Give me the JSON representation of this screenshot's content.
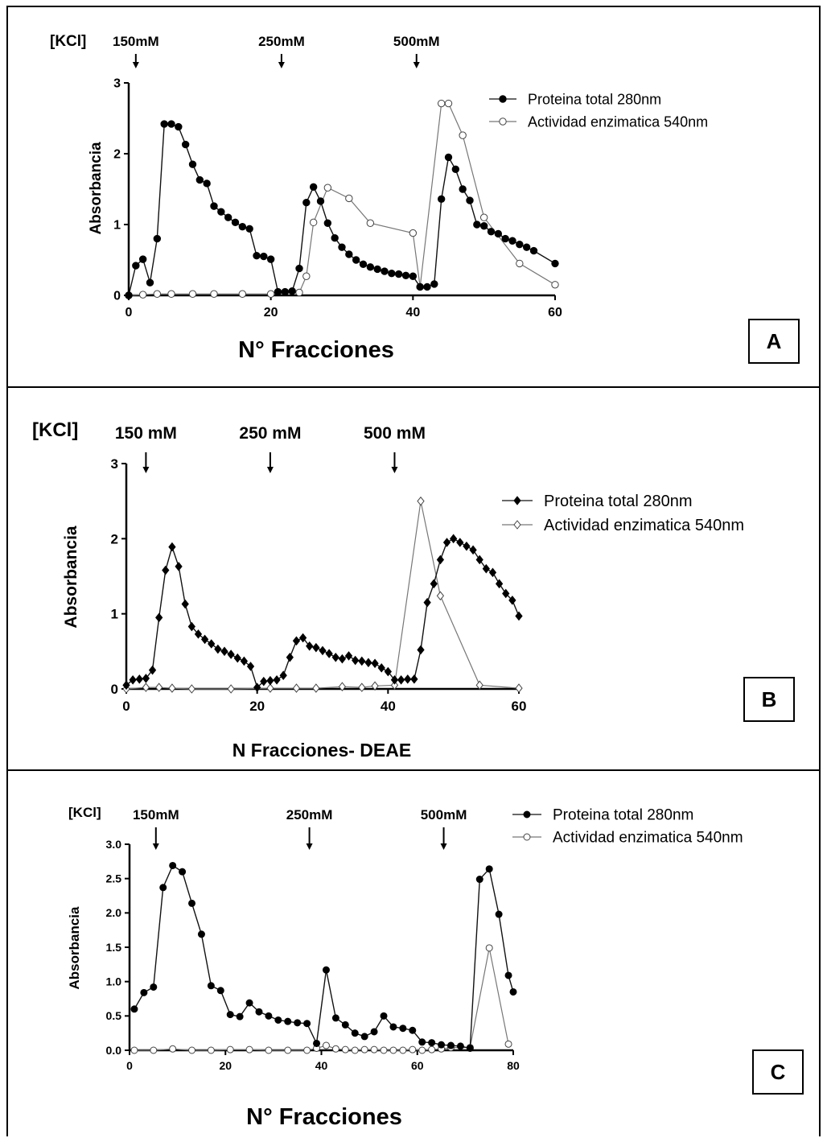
{
  "chart_data": [
    {
      "panel": "A",
      "type": "line",
      "xlabel": "N° Fracciones",
      "ylabel": "Absorbancia",
      "xlim": [
        0,
        60
      ],
      "ylim": [
        0,
        3
      ],
      "xticks": [
        "0",
        "20",
        "40",
        "60"
      ],
      "yticks": [
        "0",
        "1",
        "2",
        "3"
      ],
      "salt_label": "[KCl]",
      "arrows": [
        {
          "label": "150mM",
          "x": 1
        },
        {
          "label": "250mM",
          "x": 21.5
        },
        {
          "label": "500mM",
          "x": 40.5
        }
      ],
      "series": [
        {
          "name": "Proteina total 280nm",
          "marker": "filled",
          "points": [
            [
              0,
              0
            ],
            [
              1,
              0.42
            ],
            [
              2,
              0.51
            ],
            [
              3,
              0.18
            ],
            [
              4,
              0.8
            ],
            [
              5,
              2.42
            ],
            [
              6,
              2.42
            ],
            [
              7,
              2.38
            ],
            [
              8,
              2.13
            ],
            [
              9,
              1.85
            ],
            [
              10,
              1.63
            ],
            [
              11,
              1.58
            ],
            [
              12,
              1.26
            ],
            [
              13,
              1.18
            ],
            [
              14,
              1.1
            ],
            [
              15,
              1.03
            ],
            [
              16,
              0.97
            ],
            [
              17,
              0.94
            ],
            [
              18,
              0.56
            ],
            [
              19,
              0.55
            ],
            [
              20,
              0.51
            ],
            [
              21,
              0.05
            ],
            [
              22,
              0.05
            ],
            [
              23,
              0.06
            ],
            [
              24,
              0.38
            ],
            [
              25,
              1.31
            ],
            [
              26,
              1.53
            ],
            [
              27,
              1.33
            ],
            [
              28,
              1.02
            ],
            [
              29,
              0.81
            ],
            [
              30,
              0.68
            ],
            [
              31,
              0.58
            ],
            [
              32,
              0.5
            ],
            [
              33,
              0.44
            ],
            [
              34,
              0.4
            ],
            [
              35,
              0.37
            ],
            [
              36,
              0.34
            ],
            [
              37,
              0.31
            ],
            [
              38,
              0.3
            ],
            [
              39,
              0.28
            ],
            [
              40,
              0.27
            ],
            [
              41,
              0.12
            ],
            [
              42,
              0.12
            ],
            [
              43,
              0.16
            ],
            [
              44,
              1.36
            ],
            [
              45,
              1.95
            ],
            [
              46,
              1.78
            ],
            [
              47,
              1.5
            ],
            [
              48,
              1.34
            ],
            [
              49,
              1.0
            ],
            [
              50,
              0.98
            ],
            [
              51,
              0.9
            ],
            [
              52,
              0.87
            ],
            [
              53,
              0.8
            ],
            [
              54,
              0.77
            ],
            [
              55,
              0.72
            ],
            [
              56,
              0.68
            ],
            [
              57,
              0.63
            ],
            [
              60,
              0.45
            ]
          ]
        },
        {
          "name": "Actividad enzimatica 540nm",
          "marker": "open",
          "points": [
            [
              0,
              0
            ],
            [
              2,
              0.01
            ],
            [
              4,
              0.02
            ],
            [
              6,
              0.02
            ],
            [
              9,
              0.02
            ],
            [
              12,
              0.02
            ],
            [
              16,
              0.02
            ],
            [
              20,
              0.02
            ],
            [
              24,
              0.04
            ],
            [
              25,
              0.27
            ],
            [
              26,
              1.03
            ],
            [
              28,
              1.52
            ],
            [
              31,
              1.37
            ],
            [
              34,
              1.02
            ],
            [
              40,
              0.88
            ],
            [
              41,
              0.12
            ],
            [
              44,
              2.71
            ],
            [
              45,
              2.71
            ],
            [
              47,
              2.26
            ],
            [
              50,
              1.1
            ],
            [
              55,
              0.45
            ],
            [
              60,
              0.15
            ]
          ]
        }
      ],
      "legend_position": "top-right"
    },
    {
      "panel": "B",
      "type": "line",
      "xlabel": "N Fracciones- DEAE",
      "ylabel": "Absorbancia",
      "xlim": [
        0,
        60
      ],
      "ylim": [
        0,
        3
      ],
      "xticks": [
        "0",
        "20",
        "40",
        "60"
      ],
      "yticks": [
        "0",
        "1",
        "2",
        "3"
      ],
      "salt_label": "[KCl]",
      "arrows": [
        {
          "label": "150 mM",
          "x": 3
        },
        {
          "label": "250 mM",
          "x": 22
        },
        {
          "label": "500 mM",
          "x": 41
        }
      ],
      "series": [
        {
          "name": "Proteina total 280nm",
          "marker": "filled-diamond",
          "points": [
            [
              0,
              0.05
            ],
            [
              1,
              0.12
            ],
            [
              2,
              0.13
            ],
            [
              3,
              0.14
            ],
            [
              4,
              0.25
            ],
            [
              5,
              0.95
            ],
            [
              6,
              1.58
            ],
            [
              7,
              1.89
            ],
            [
              8,
              1.63
            ],
            [
              9,
              1.13
            ],
            [
              10,
              0.83
            ],
            [
              11,
              0.73
            ],
            [
              12,
              0.66
            ],
            [
              13,
              0.6
            ],
            [
              14,
              0.53
            ],
            [
              15,
              0.5
            ],
            [
              16,
              0.46
            ],
            [
              17,
              0.41
            ],
            [
              18,
              0.37
            ],
            [
              19,
              0.3
            ],
            [
              20,
              0.02
            ],
            [
              21,
              0.1
            ],
            [
              22,
              0.11
            ],
            [
              23,
              0.12
            ],
            [
              24,
              0.18
            ],
            [
              25,
              0.42
            ],
            [
              26,
              0.64
            ],
            [
              27,
              0.68
            ],
            [
              28,
              0.57
            ],
            [
              29,
              0.55
            ],
            [
              30,
              0.51
            ],
            [
              31,
              0.47
            ],
            [
              32,
              0.42
            ],
            [
              33,
              0.4
            ],
            [
              34,
              0.44
            ],
            [
              35,
              0.38
            ],
            [
              36,
              0.37
            ],
            [
              37,
              0.35
            ],
            [
              38,
              0.34
            ],
            [
              39,
              0.28
            ],
            [
              40,
              0.23
            ],
            [
              41,
              0.12
            ],
            [
              42,
              0.12
            ],
            [
              43,
              0.13
            ],
            [
              44,
              0.13
            ],
            [
              45,
              0.52
            ],
            [
              46,
              1.15
            ],
            [
              47,
              1.4
            ],
            [
              48,
              1.72
            ],
            [
              49,
              1.95
            ],
            [
              50,
              2.0
            ],
            [
              51,
              1.95
            ],
            [
              52,
              1.9
            ],
            [
              53,
              1.85
            ],
            [
              54,
              1.72
            ],
            [
              55,
              1.6
            ],
            [
              56,
              1.55
            ],
            [
              57,
              1.4
            ],
            [
              58,
              1.27
            ],
            [
              59,
              1.18
            ],
            [
              60,
              0.97
            ]
          ]
        },
        {
          "name": "Actividad enzimatica 540nm",
          "marker": "open-diamond",
          "points": [
            [
              0,
              0
            ],
            [
              3,
              0.02
            ],
            [
              5,
              0.02
            ],
            [
              7,
              0.01
            ],
            [
              10,
              0
            ],
            [
              16,
              0
            ],
            [
              22,
              0.01
            ],
            [
              26,
              0.01
            ],
            [
              29,
              0.01
            ],
            [
              33,
              0.03
            ],
            [
              36,
              0.02
            ],
            [
              38,
              0.04
            ],
            [
              41,
              0.05
            ],
            [
              45,
              2.5
            ],
            [
              48,
              1.24
            ],
            [
              54,
              0.05
            ],
            [
              60,
              0.01
            ]
          ]
        }
      ],
      "legend_position": "top-right"
    },
    {
      "panel": "C",
      "type": "line",
      "xlabel": "N° Fracciones",
      "ylabel": "Absorbancia",
      "xlim": [
        0,
        80
      ],
      "ylim": [
        0,
        3
      ],
      "xticks": [
        "0",
        "20",
        "40",
        "60",
        "80"
      ],
      "yticks": [
        "0.0",
        "0.5",
        "1.0",
        "1.5",
        "2.0",
        "2.5",
        "3.0"
      ],
      "salt_label": "[KCl]",
      "arrows": [
        {
          "label": "150mM",
          "x": 5.5
        },
        {
          "label": "250mM",
          "x": 37.5
        },
        {
          "label": "500mM",
          "x": 65.5
        }
      ],
      "series": [
        {
          "name": "Proteina total 280nm",
          "marker": "filled",
          "points": [
            [
              1,
              0.6
            ],
            [
              3,
              0.84
            ],
            [
              5,
              0.92
            ],
            [
              7,
              2.37
            ],
            [
              9,
              2.69
            ],
            [
              11,
              2.6
            ],
            [
              13,
              2.14
            ],
            [
              15,
              1.69
            ],
            [
              17,
              0.94
            ],
            [
              19,
              0.87
            ],
            [
              21,
              0.52
            ],
            [
              23,
              0.49
            ],
            [
              25,
              0.69
            ],
            [
              27,
              0.56
            ],
            [
              29,
              0.5
            ],
            [
              31,
              0.44
            ],
            [
              33,
              0.42
            ],
            [
              35,
              0.4
            ],
            [
              37,
              0.39
            ],
            [
              39,
              0.1
            ],
            [
              41,
              1.17
            ],
            [
              43,
              0.47
            ],
            [
              45,
              0.37
            ],
            [
              47,
              0.25
            ],
            [
              49,
              0.2
            ],
            [
              51,
              0.27
            ],
            [
              53,
              0.5
            ],
            [
              55,
              0.34
            ],
            [
              57,
              0.32
            ],
            [
              59,
              0.29
            ],
            [
              61,
              0.12
            ],
            [
              63,
              0.11
            ],
            [
              65,
              0.08
            ],
            [
              67,
              0.07
            ],
            [
              69,
              0.06
            ],
            [
              71,
              0.03
            ],
            [
              73,
              2.49
            ],
            [
              75,
              2.64
            ],
            [
              77,
              1.98
            ],
            [
              79,
              1.09
            ],
            [
              80,
              0.85
            ]
          ]
        },
        {
          "name": "Actividad enzimatica 540nm",
          "marker": "open",
          "points": [
            [
              1,
              0
            ],
            [
              5,
              0
            ],
            [
              9,
              0.02
            ],
            [
              13,
              0
            ],
            [
              17,
              0
            ],
            [
              21,
              0.01
            ],
            [
              25,
              0.01
            ],
            [
              29,
              0
            ],
            [
              33,
              0
            ],
            [
              37,
              0
            ],
            [
              39,
              0.03
            ],
            [
              41,
              0.07
            ],
            [
              43,
              0.02
            ],
            [
              45,
              0.01
            ],
            [
              47,
              0
            ],
            [
              49,
              0.01
            ],
            [
              51,
              0.01
            ],
            [
              53,
              0
            ],
            [
              55,
              0
            ],
            [
              57,
              0
            ],
            [
              59,
              0.01
            ],
            [
              61,
              0
            ],
            [
              63,
              0.01
            ],
            [
              65,
              0.02
            ],
            [
              67,
              0.04
            ],
            [
              71,
              0.04
            ],
            [
              75,
              1.49
            ],
            [
              79,
              0.09
            ]
          ]
        }
      ],
      "legend_position": "top-right"
    }
  ]
}
